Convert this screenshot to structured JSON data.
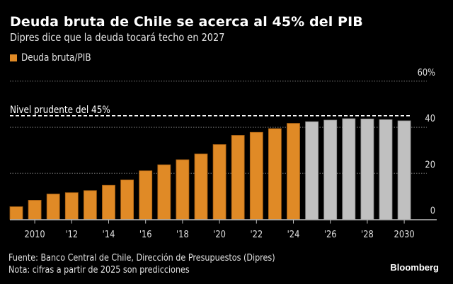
{
  "header": {
    "title": "Deuda bruta de Chile se acerca al 45% del PIB",
    "subtitle": "Dipres dice que la deuda tocará techo en 2027"
  },
  "legend": {
    "label": "Deuda bruta/PIB",
    "color": "#E08A26"
  },
  "footer": {
    "source": "Fuente: Banco Central de Chile, Dirección de Presupuestos (Dipres)",
    "note": "Nota: cifras a partir de 2025 son predicciones",
    "brand": "Bloomberg"
  },
  "chart_data": {
    "type": "bar",
    "title": "Deuda bruta de Chile se acerca al 45% del PIB",
    "subtitle": "Dipres dice que la deuda tocará techo en 2027",
    "xlabel": "",
    "ylabel": "",
    "categories": [
      2009,
      2010,
      2011,
      2012,
      2013,
      2014,
      2015,
      2016,
      2017,
      2018,
      2019,
      2020,
      2021,
      2022,
      2023,
      2024,
      2025,
      2026,
      2027,
      2028,
      2029,
      2030
    ],
    "series": [
      {
        "name": "Deuda bruta/PIB",
        "values": [
          5.5,
          8.3,
          11.0,
          11.6,
          12.5,
          14.8,
          17.1,
          21.1,
          23.7,
          25.9,
          28.4,
          32.5,
          36.5,
          37.8,
          39.4,
          41.7,
          42.4,
          43.1,
          43.7,
          43.6,
          43.3,
          42.8
        ]
      }
    ],
    "forecast_from": 2025,
    "colors": {
      "actual": "#E08A26",
      "forecast": "#C0C0C0"
    },
    "ylim": [
      0,
      60
    ],
    "yticks": [
      0,
      20,
      40,
      60
    ],
    "ytick_labels": [
      "0",
      "20",
      "40",
      "60%"
    ],
    "y_axis_position": "right",
    "xticks": [
      2010,
      2012,
      2014,
      2016,
      2018,
      2020,
      2022,
      2024,
      2026,
      2028,
      2030
    ],
    "xtick_labels": [
      "2010",
      "'12",
      "'14",
      "'16",
      "'18",
      "'20",
      "'22",
      "'24",
      "'26",
      "'28",
      "2030"
    ],
    "grid": true,
    "reference_line": {
      "value": 45,
      "label": "Nivel prudente del 45%",
      "style": "dashed"
    },
    "legend_position": "top-left"
  }
}
